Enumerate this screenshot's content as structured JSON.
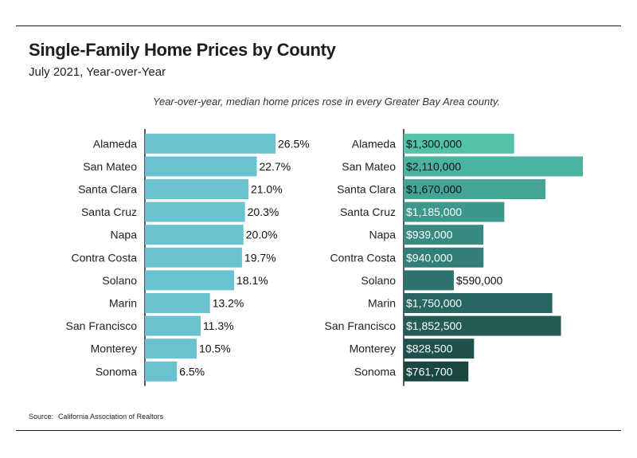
{
  "header": {
    "title": "Single-Family Home Prices by County",
    "subtitle": "July 2021, Year-over-Year",
    "note": "Year-over-year, median home prices rose in every Greater Bay Area county."
  },
  "source": {
    "label": "Source:",
    "text": "California Association of Realtors"
  },
  "chart_data": [
    {
      "type": "bar",
      "orientation": "horizontal",
      "title": "",
      "categories": [
        "Alameda",
        "San Mateo",
        "Santa Clara",
        "Santa Cruz",
        "Napa",
        "Contra Costa",
        "Solano",
        "Marin",
        "San Francisco",
        "Monterey",
        "Sonoma"
      ],
      "values": [
        26.5,
        22.7,
        21.0,
        20.3,
        20.0,
        19.7,
        18.1,
        13.2,
        11.3,
        10.5,
        6.5
      ],
      "labels": [
        "26.5%",
        "22.7%",
        "21.0%",
        "20.3%",
        "20.0%",
        "19.7%",
        "18.1%",
        "13.2%",
        "11.3%",
        "10.5%",
        "6.5%"
      ],
      "unit": "percent",
      "xlim": [
        0,
        30
      ],
      "grid": false,
      "color": "#6ac1cf"
    },
    {
      "type": "bar",
      "orientation": "horizontal",
      "title": "",
      "categories": [
        "Alameda",
        "San Mateo",
        "Santa Clara",
        "Santa Cruz",
        "Napa",
        "Contra Costa",
        "Solano",
        "Marin",
        "San Francisco",
        "Monterey",
        "Sonoma"
      ],
      "values": [
        1300000,
        2110000,
        1670000,
        1185000,
        939000,
        940000,
        590000,
        1750000,
        1852500,
        828500,
        761700
      ],
      "labels": [
        "$1,300,000",
        "$2,110,000",
        "$1,670,000",
        "$1,185,000",
        "$939,000",
        "$940,000",
        "$590,000",
        "$1,750,000",
        "$1,852,500",
        "$828,500",
        "$761,700"
      ],
      "unit": "USD",
      "xlim": [
        0,
        2200000
      ],
      "grid": false,
      "colors": [
        "#52c2ab",
        "#4ab3a0",
        "#44a596",
        "#3e978b",
        "#398a81",
        "#337e77",
        "#2e726c",
        "#296662",
        "#245b57",
        "#1f504d",
        "#1a4642"
      ]
    }
  ]
}
